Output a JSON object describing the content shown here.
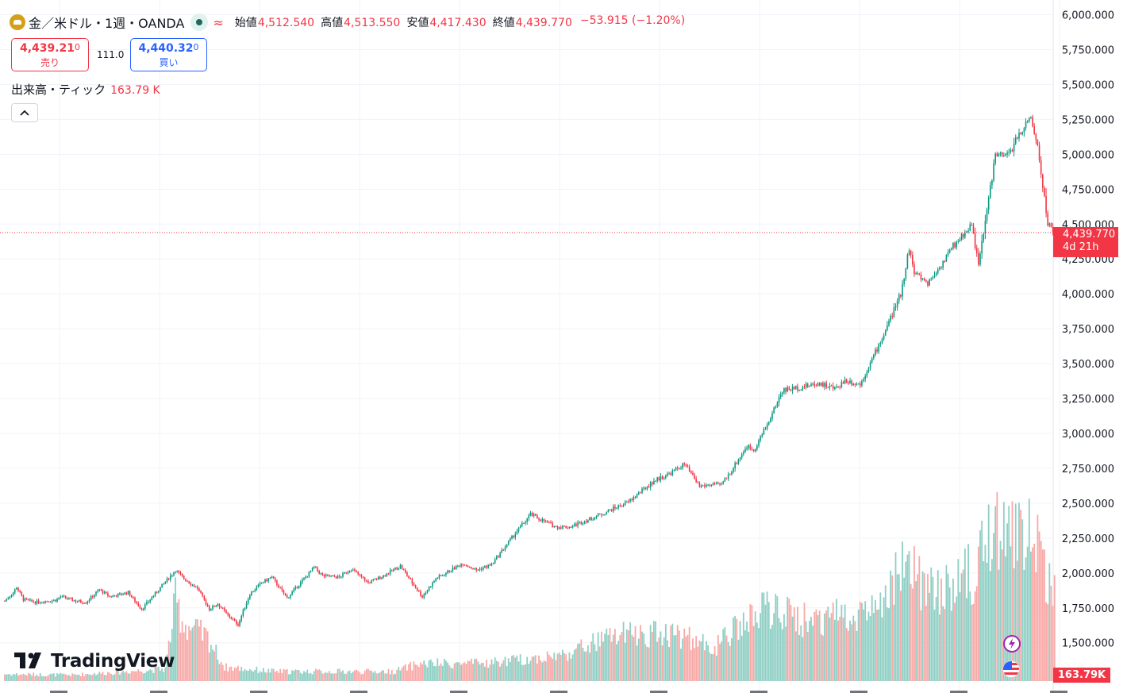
{
  "header": {
    "symbol": "金／米ドル・1週・OANDA",
    "open_label": "始値",
    "open": "4,512.540",
    "high_label": "高値",
    "high": "4,513.550",
    "low_label": "安値",
    "low": "4,417.430",
    "close_label": "終値",
    "close": "4,439.770",
    "change": "−53.915 (−1.20%)"
  },
  "trade": {
    "sell_main": "4,439.21",
    "sell_small": "0",
    "sell_label": "売り",
    "spread": "111.0",
    "buy_main": "4,440.32",
    "buy_small": "0",
    "buy_label": "買い"
  },
  "volume": {
    "label": "出来高・ティック",
    "value": "163.79 K",
    "tag": "163.79K"
  },
  "last_price": {
    "price": "4,439.770",
    "countdown": "4d 21h"
  },
  "brand": {
    "name": "TradingView"
  },
  "icons": [
    "gold-coin-icon",
    "live-dot-icon",
    "wave-icon",
    "chevron-up-icon",
    "lightning-icon",
    "us-flag-icon",
    "tradingview-logo-icon"
  ],
  "colors": {
    "up": "#089981",
    "down": "#f23645",
    "vol_up": "#8fcfc4",
    "vol_down": "#f7a9a7"
  },
  "chart_data": {
    "type": "candlestick",
    "symbol": "XAU/USD",
    "timeframe": "1W",
    "ylim": [
      1140,
      6060
    ],
    "y_ticks": [
      "6,000.000",
      "5,750.000",
      "5,500.000",
      "5,250.000",
      "5,000.000",
      "4,750.000",
      "4,500.000",
      "4,250.000",
      "4,000.000",
      "3,750.000",
      "3,500.000",
      "3,250.000",
      "3,000.000",
      "2,750.000",
      "2,500.000",
      "2,250.000",
      "2,000.000",
      "1,750.000",
      "1,500.000"
    ],
    "y_tick_values": [
      6000,
      5750,
      5500,
      5250,
      5000,
      4750,
      4500,
      4250,
      4000,
      3750,
      3500,
      3250,
      3000,
      2750,
      2500,
      2250,
      2000,
      1750,
      1500
    ],
    "grid": true,
    "x_label_count": 11,
    "last_close": 4439.77,
    "anchors": [
      [
        0,
        1800
      ],
      [
        5,
        1860
      ],
      [
        7,
        1900
      ],
      [
        11,
        1810
      ],
      [
        18,
        1790
      ],
      [
        30,
        1805
      ],
      [
        33,
        1830
      ],
      [
        42,
        1800
      ],
      [
        48,
        1790
      ],
      [
        56,
        1880
      ],
      [
        62,
        1830
      ],
      [
        73,
        1860
      ],
      [
        81,
        1740
      ],
      [
        101,
        2020
      ],
      [
        106,
        1960
      ],
      [
        114,
        1890
      ],
      [
        121,
        1740
      ],
      [
        126,
        1780
      ],
      [
        131,
        1710
      ],
      [
        138,
        1630
      ],
      [
        145,
        1850
      ],
      [
        152,
        1930
      ],
      [
        158,
        1970
      ],
      [
        167,
        1820
      ],
      [
        183,
        2040
      ],
      [
        188,
        1980
      ],
      [
        198,
        1970
      ],
      [
        205,
        2030
      ],
      [
        215,
        1930
      ],
      [
        224,
        1980
      ],
      [
        234,
        2050
      ],
      [
        247,
        1830
      ],
      [
        255,
        1960
      ],
      [
        271,
        2070
      ],
      [
        279,
        2020
      ],
      [
        288,
        2060
      ],
      [
        303,
        2300
      ],
      [
        311,
        2420
      ],
      [
        326,
        2330
      ],
      [
        334,
        2330
      ],
      [
        347,
        2390
      ],
      [
        369,
        2510
      ],
      [
        384,
        2660
      ],
      [
        393,
        2710
      ],
      [
        402,
        2780
      ],
      [
        411,
        2620
      ],
      [
        420,
        2640
      ],
      [
        423,
        2620
      ],
      [
        428,
        2700
      ],
      [
        439,
        2910
      ],
      [
        443,
        2880
      ],
      [
        451,
        3060
      ],
      [
        460,
        3310
      ],
      [
        471,
        3330
      ],
      [
        482,
        3360
      ],
      [
        491,
        3320
      ],
      [
        497,
        3380
      ],
      [
        506,
        3350
      ],
      [
        520,
        3710
      ],
      [
        530,
        4000
      ],
      [
        535,
        4330
      ],
      [
        538,
        4150
      ],
      [
        546,
        4080
      ],
      [
        553,
        4190
      ],
      [
        561,
        4340
      ],
      [
        572,
        4500
      ],
      [
        576,
        4200
      ],
      [
        586,
        5000
      ],
      [
        592,
        4980
      ],
      [
        596,
        5050
      ],
      [
        603,
        5200
      ],
      [
        606,
        5280
      ],
      [
        611,
        5060
      ],
      [
        617,
        4500
      ],
      [
        621,
        4440
      ]
    ],
    "volume_anchors": [
      [
        0,
        40
      ],
      [
        40,
        35
      ],
      [
        95,
        70
      ],
      [
        101,
        460
      ],
      [
        106,
        330
      ],
      [
        120,
        250
      ],
      [
        130,
        80
      ],
      [
        160,
        55
      ],
      [
        230,
        55
      ],
      [
        245,
        100
      ],
      [
        280,
        100
      ],
      [
        303,
        120
      ],
      [
        330,
        150
      ],
      [
        360,
        260
      ],
      [
        395,
        280
      ],
      [
        420,
        190
      ],
      [
        430,
        280
      ],
      [
        451,
        420
      ],
      [
        470,
        350
      ],
      [
        520,
        420
      ],
      [
        531,
        660
      ],
      [
        550,
        500
      ],
      [
        575,
        630
      ],
      [
        586,
        920
      ],
      [
        596,
        850
      ],
      [
        611,
        820
      ],
      [
        616,
        620
      ],
      [
        621,
        560
      ]
    ],
    "volume_max": 1000
  }
}
